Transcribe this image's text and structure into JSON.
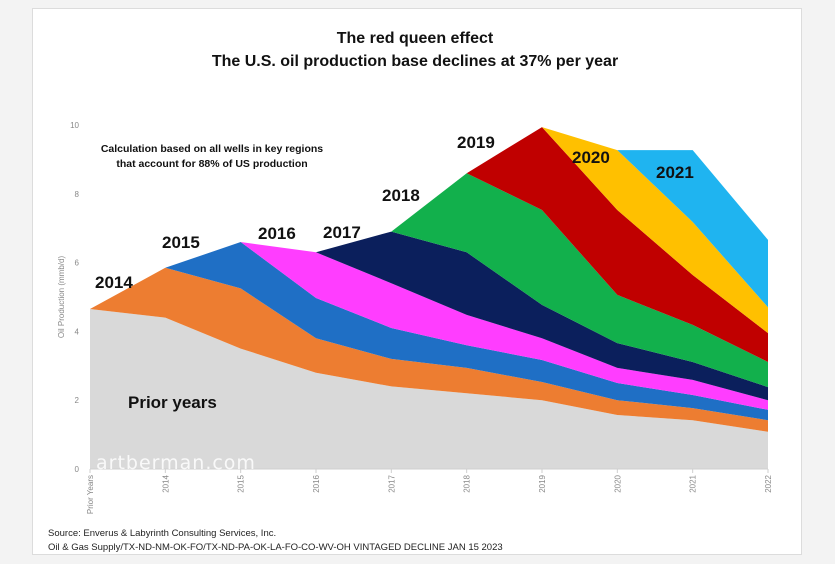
{
  "chart_data": {
    "type": "area",
    "stacked": true,
    "title": "The red queen effect",
    "subtitle": "The U.S. oil production base declines at 37% per year",
    "note": [
      "Calculation based on all wells in key regions",
      "that account for 88% of US production"
    ],
    "xlabel": "",
    "ylabel": "Oil Production (mmb/d)",
    "ylim": [
      0,
      10
    ],
    "yticks": [
      "0",
      "2",
      "4",
      "6",
      "8",
      "10"
    ],
    "categories": [
      "Prior Years",
      "2014",
      "2015",
      "2016",
      "2017",
      "2018",
      "2019",
      "2020",
      "2021",
      "2022"
    ],
    "grid": false,
    "series": [
      {
        "name": "Prior years",
        "color": "#d9d9d9",
        "values": [
          4.65,
          4.4,
          3.5,
          2.8,
          2.4,
          2.2,
          2.0,
          1.57,
          1.42,
          1.08
        ]
      },
      {
        "name": "2014",
        "color": "#ed7d31",
        "values": [
          0,
          1.45,
          1.75,
          1.0,
          0.8,
          0.74,
          0.53,
          0.43,
          0.35,
          0.34
        ]
      },
      {
        "name": "2015",
        "color": "#1f6fc5",
        "values": [
          null,
          0,
          1.35,
          1.17,
          0.9,
          0.66,
          0.64,
          0.5,
          0.38,
          0.3
        ]
      },
      {
        "name": "2016",
        "color": "#ff3dff",
        "values": [
          null,
          null,
          0,
          1.33,
          1.3,
          0.88,
          0.63,
          0.44,
          0.44,
          0.28
        ]
      },
      {
        "name": "2017",
        "color": "#0b1f5c",
        "values": [
          null,
          null,
          null,
          0,
          1.5,
          1.82,
          0.97,
          0.72,
          0.52,
          0.38
        ]
      },
      {
        "name": "2018",
        "color": "#12b04c",
        "values": [
          null,
          null,
          null,
          null,
          0,
          2.3,
          2.76,
          1.4,
          1.08,
          0.73
        ]
      },
      {
        "name": "2019",
        "color": "#c00000",
        "values": [
          null,
          null,
          null,
          null,
          null,
          0,
          2.41,
          2.47,
          1.45,
          0.84
        ]
      },
      {
        "name": "2020",
        "color": "#ffc000",
        "values": [
          null,
          null,
          null,
          null,
          null,
          null,
          0,
          1.74,
          1.54,
          0.75
        ]
      },
      {
        "name": "2021",
        "color": "#1fb4f0",
        "values": [
          null,
          null,
          null,
          null,
          null,
          null,
          null,
          0,
          2.09,
          1.96
        ]
      }
    ],
    "annotations": [
      "2014",
      "2015",
      "2016",
      "2017",
      "2018",
      "2019",
      "2020",
      "2021",
      "Prior years"
    ],
    "watermark": "artberman.com",
    "source": [
      "Source: Enverus & Labyrinth Consulting Services, Inc.",
      "Oil & Gas Supply/TX-ND-NM-OK-FO/TX-ND-PA-OK-LA-FO-CO-WV-OH VINTAGED DECLINE JAN 15 2023"
    ]
  }
}
